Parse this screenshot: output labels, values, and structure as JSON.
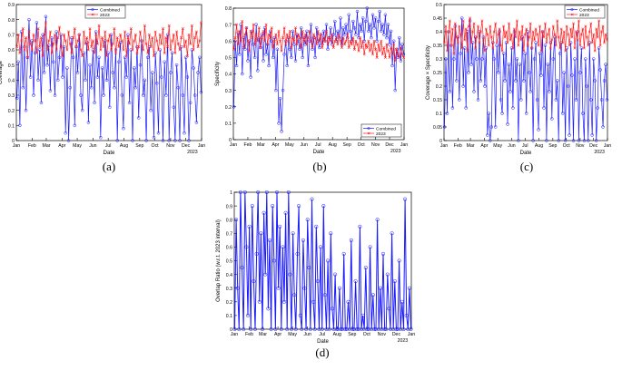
{
  "charts": [
    {
      "id": "a",
      "caption": "(a)",
      "ylabel": "Coverage",
      "xlabel": "Date",
      "ylim": [
        0,
        0.9
      ],
      "yticks": [
        "0",
        "0.1",
        "0.2",
        "0.3",
        "0.4",
        "0.5",
        "0.6",
        "0.7",
        "0.8",
        "0.9"
      ],
      "xticks": [
        "Jan",
        "Feb",
        "Mar",
        "Apr",
        "May",
        "Jun",
        "Jul",
        "Aug",
        "Sep",
        "Oct",
        "Nov",
        "Dec",
        "Jan"
      ],
      "year_label": "2023",
      "legend": [
        "Combined",
        "2023"
      ],
      "legend_position": "top-center"
    },
    {
      "id": "b",
      "caption": "(b)",
      "ylabel": "Specificity",
      "xlabel": "Date",
      "ylim": [
        0,
        0.8
      ],
      "yticks": [
        "0",
        "0.1",
        "0.2",
        "0.3",
        "0.4",
        "0.5",
        "0.6",
        "0.7",
        "0.8"
      ],
      "xticks": [
        "Jan",
        "Feb",
        "Mar",
        "Apr",
        "May",
        "Jun",
        "Jul",
        "Aug",
        "Sep",
        "Oct",
        "Nov",
        "Dec",
        "Jan"
      ],
      "year_label": "2023",
      "legend": [
        "Combined",
        "2023"
      ],
      "legend_position": "bottom-right"
    },
    {
      "id": "c",
      "caption": "(c)",
      "ylabel": "Coverage × Specificity",
      "xlabel": "Date",
      "ylim": [
        0,
        0.5
      ],
      "yticks": [
        "0",
        "0.05",
        "0.1",
        "0.15",
        "0.2",
        "0.25",
        "0.3",
        "0.35",
        "0.4",
        "0.45",
        "0.5"
      ],
      "xticks": [
        "Jan",
        "Feb",
        "Mar",
        "Apr",
        "May",
        "Jun",
        "Jul",
        "Aug",
        "Sep",
        "Oct",
        "Nov",
        "Dec",
        "Jan"
      ],
      "year_label": "2023",
      "legend": [
        "Combined",
        "2023"
      ],
      "legend_position": "top-right"
    },
    {
      "id": "d",
      "caption": "(d)",
      "ylabel": "Overlap Ratio (w.r.t. 2023 interval)",
      "xlabel": "Date",
      "ylim": [
        0,
        1
      ],
      "yticks": [
        "0",
        "0.1",
        "0.2",
        "0.3",
        "0.4",
        "0.5",
        "0.6",
        "0.7",
        "0.8",
        "0.9",
        "1"
      ],
      "xticks": [
        "Jan",
        "Feb",
        "Mar",
        "Apr",
        "May",
        "Jun",
        "Jul",
        "Aug",
        "Sep",
        "Oct",
        "Nov",
        "Dec",
        "Jan"
      ],
      "year_label": "2023",
      "legend": [],
      "legend_position": "none"
    }
  ],
  "colors": {
    "combined": "#1a1aff",
    "y2023": "#ff1a1a",
    "axis": "#000000",
    "text": "#000000"
  },
  "chart_data": [
    {
      "type": "line",
      "title": "",
      "xlabel": "Date",
      "ylabel": "Coverage",
      "ylim": [
        0,
        0.9
      ],
      "x_range": [
        "2023-01-01",
        "2024-01-01"
      ],
      "legend_position": "top-center",
      "series": [
        {
          "name": "Combined",
          "sample_every_days": 3,
          "values": [
            0.28,
            0.52,
            0.1,
            0.72,
            0.35,
            0.62,
            0.2,
            0.55,
            0.8,
            0.42,
            0.66,
            0.3,
            0.58,
            0.78,
            0.4,
            0.6,
            0.25,
            0.7,
            0.45,
            0.82,
            0.5,
            0.63,
            0.33,
            0.68,
            0.52,
            0.3,
            0.72,
            0.4,
            0.55,
            0.7,
            0.42,
            0.62,
            0.05,
            0.48,
            0.0,
            0.35,
            0.68,
            0.55,
            0.1,
            0.62,
            0.45,
            0.7,
            0.3,
            0.2,
            0.58,
            0.4,
            0.65,
            0.12,
            0.5,
            0.35,
            0.6,
            0.25,
            0.72,
            0.42,
            0.55,
            0.02,
            0.48,
            0.3,
            0.66,
            0.4,
            0.58,
            0.22,
            0.7,
            0.45,
            0.35,
            0.6,
            0.0,
            0.52,
            0.65,
            0.3,
            0.08,
            0.55,
            0.42,
            0.7,
            0.25,
            0.6,
            0.0,
            0.48,
            0.35,
            0.62,
            0.15,
            0.5,
            0.66,
            0.3,
            0.4,
            0.0,
            0.55,
            0.62,
            0.2,
            0.45,
            0.02,
            0.58,
            0.38,
            0.05,
            0.6,
            0.42,
            0.0,
            0.52,
            0.3,
            0.7,
            0.0,
            0.45,
            0.58,
            0.22,
            0.0,
            0.5,
            0.35,
            0.0,
            0.62,
            0.3,
            0.05,
            0.55,
            0.42,
            0.0,
            0.25,
            0.6,
            0.48,
            0.3,
            0.12,
            0.45,
            0.55,
            0.32
          ]
        },
        {
          "name": "2023",
          "sample_every_days": 3,
          "values": [
            0.62,
            0.7,
            0.58,
            0.66,
            0.74,
            0.6,
            0.68,
            0.55,
            0.72,
            0.64,
            0.6,
            0.7,
            0.66,
            0.58,
            0.74,
            0.62,
            0.68,
            0.56,
            0.7,
            0.78,
            0.6,
            0.66,
            0.72,
            0.58,
            0.64,
            0.7,
            0.6,
            0.68,
            0.75,
            0.62,
            0.56,
            0.7,
            0.66,
            0.6,
            0.72,
            0.64,
            0.58,
            0.68,
            0.74,
            0.62,
            0.66,
            0.7,
            0.6,
            0.56,
            0.72,
            0.64,
            0.68,
            0.6,
            0.74,
            0.62,
            0.66,
            0.58,
            0.7,
            0.64,
            0.76,
            0.6,
            0.68,
            0.62,
            0.72,
            0.56,
            0.66,
            0.7,
            0.6,
            0.64,
            0.74,
            0.58,
            0.68,
            0.62,
            0.7,
            0.66,
            0.6,
            0.72,
            0.56,
            0.68,
            0.64,
            0.74,
            0.6,
            0.66,
            0.7,
            0.58,
            0.62,
            0.72,
            0.66,
            0.6,
            0.76,
            0.64,
            0.58,
            0.7,
            0.62,
            0.68,
            0.56,
            0.72,
            0.66,
            0.6,
            0.7,
            0.64,
            0.74,
            0.58,
            0.68,
            0.62,
            0.76,
            0.6,
            0.66,
            0.7,
            0.58,
            0.72,
            0.64,
            0.6,
            0.68,
            0.74,
            0.62,
            0.66,
            0.56,
            0.7,
            0.64,
            0.76,
            0.6,
            0.68,
            0.72,
            0.62,
            0.66,
            0.78
          ]
        }
      ]
    },
    {
      "type": "line",
      "title": "",
      "xlabel": "Date",
      "ylabel": "Specificity",
      "ylim": [
        0,
        0.8
      ],
      "x_range": [
        "2023-01-01",
        "2024-01-01"
      ],
      "legend_position": "bottom-right",
      "series": [
        {
          "name": "Combined",
          "sample_every_days": 3,
          "values": [
            0.2,
            0.6,
            0.45,
            0.65,
            0.52,
            0.7,
            0.4,
            0.62,
            0.55,
            0.68,
            0.48,
            0.6,
            0.38,
            0.66,
            0.58,
            0.5,
            0.7,
            0.42,
            0.62,
            0.56,
            0.64,
            0.48,
            0.68,
            0.52,
            0.58,
            0.45,
            0.66,
            0.6,
            0.5,
            0.62,
            0.3,
            0.55,
            0.1,
            0.25,
            0.05,
            0.3,
            0.52,
            0.6,
            0.45,
            0.62,
            0.55,
            0.5,
            0.66,
            0.58,
            0.48,
            0.64,
            0.6,
            0.55,
            0.68,
            0.5,
            0.62,
            0.58,
            0.66,
            0.45,
            0.6,
            0.7,
            0.55,
            0.62,
            0.5,
            0.68,
            0.6,
            0.56,
            0.64,
            0.58,
            0.66,
            0.6,
            0.7,
            0.55,
            0.62,
            0.68,
            0.58,
            0.64,
            0.72,
            0.6,
            0.66,
            0.62,
            0.74,
            0.58,
            0.68,
            0.64,
            0.7,
            0.62,
            0.76,
            0.66,
            0.6,
            0.72,
            0.68,
            0.64,
            0.78,
            0.62,
            0.7,
            0.66,
            0.74,
            0.6,
            0.72,
            0.8,
            0.66,
            0.7,
            0.62,
            0.76,
            0.68,
            0.74,
            0.6,
            0.72,
            0.78,
            0.66,
            0.7,
            0.64,
            0.76,
            0.62,
            0.7,
            0.58,
            0.66,
            0.45,
            0.6,
            0.3,
            0.55,
            0.5,
            0.62,
            0.48,
            0.58,
            0.52
          ]
        },
        {
          "name": "2023",
          "sample_every_days": 3,
          "values": [
            0.55,
            0.62,
            0.7,
            0.58,
            0.66,
            0.6,
            0.72,
            0.56,
            0.64,
            0.68,
            0.6,
            0.54,
            0.66,
            0.62,
            0.7,
            0.58,
            0.64,
            0.6,
            0.68,
            0.56,
            0.62,
            0.66,
            0.6,
            0.7,
            0.58,
            0.64,
            0.62,
            0.68,
            0.56,
            0.6,
            0.64,
            0.58,
            0.66,
            0.6,
            0.54,
            0.62,
            0.68,
            0.58,
            0.64,
            0.6,
            0.66,
            0.56,
            0.62,
            0.6,
            0.68,
            0.58,
            0.64,
            0.62,
            0.56,
            0.66,
            0.6,
            0.64,
            0.58,
            0.62,
            0.66,
            0.6,
            0.56,
            0.64,
            0.62,
            0.58,
            0.66,
            0.6,
            0.64,
            0.56,
            0.62,
            0.6,
            0.66,
            0.58,
            0.62,
            0.6,
            0.64,
            0.56,
            0.6,
            0.62,
            0.58,
            0.64,
            0.6,
            0.56,
            0.62,
            0.58,
            0.6,
            0.64,
            0.56,
            0.6,
            0.58,
            0.62,
            0.55,
            0.6,
            0.58,
            0.54,
            0.62,
            0.56,
            0.6,
            0.52,
            0.58,
            0.56,
            0.6,
            0.54,
            0.58,
            0.52,
            0.6,
            0.55,
            0.5,
            0.58,
            0.54,
            0.6,
            0.52,
            0.56,
            0.5,
            0.58,
            0.54,
            0.5,
            0.56,
            0.52,
            0.58,
            0.48,
            0.55,
            0.52,
            0.5,
            0.56,
            0.52,
            0.5
          ]
        }
      ]
    },
    {
      "type": "line",
      "title": "",
      "xlabel": "Date",
      "ylabel": "Coverage × Specificity",
      "ylim": [
        0,
        0.5
      ],
      "x_range": [
        "2023-01-01",
        "2024-01-01"
      ],
      "legend_position": "top-right",
      "series": [
        {
          "name": "Combined",
          "sample_every_days": 3,
          "values": [
            0.05,
            0.3,
            0.1,
            0.4,
            0.18,
            0.35,
            0.12,
            0.3,
            0.42,
            0.22,
            0.38,
            0.15,
            0.32,
            0.45,
            0.2,
            0.34,
            0.12,
            0.4,
            0.25,
            0.44,
            0.28,
            0.36,
            0.18,
            0.38,
            0.3,
            0.15,
            0.4,
            0.22,
            0.3,
            0.38,
            0.2,
            0.34,
            0.02,
            0.1,
            0.0,
            0.05,
            0.36,
            0.3,
            0.05,
            0.35,
            0.25,
            0.4,
            0.15,
            0.1,
            0.32,
            0.22,
            0.36,
            0.06,
            0.28,
            0.18,
            0.34,
            0.12,
            0.4,
            0.22,
            0.3,
            0.0,
            0.28,
            0.15,
            0.38,
            0.22,
            0.32,
            0.1,
            0.4,
            0.25,
            0.18,
            0.34,
            0.0,
            0.3,
            0.36,
            0.15,
            0.04,
            0.32,
            0.24,
            0.4,
            0.12,
            0.35,
            0.0,
            0.28,
            0.18,
            0.36,
            0.08,
            0.3,
            0.38,
            0.15,
            0.22,
            0.0,
            0.32,
            0.36,
            0.1,
            0.25,
            0.0,
            0.34,
            0.2,
            0.02,
            0.36,
            0.24,
            0.0,
            0.3,
            0.15,
            0.4,
            0.0,
            0.25,
            0.34,
            0.1,
            0.0,
            0.3,
            0.2,
            0.0,
            0.36,
            0.15,
            0.02,
            0.3,
            0.22,
            0.0,
            0.12,
            0.34,
            0.26,
            0.15,
            0.05,
            0.22,
            0.28,
            0.15
          ]
        },
        {
          "name": "2023",
          "sample_every_days": 3,
          "values": [
            0.36,
            0.42,
            0.33,
            0.4,
            0.44,
            0.35,
            0.41,
            0.32,
            0.43,
            0.38,
            0.36,
            0.42,
            0.39,
            0.34,
            0.44,
            0.37,
            0.41,
            0.33,
            0.42,
            0.45,
            0.36,
            0.4,
            0.43,
            0.34,
            0.38,
            0.42,
            0.36,
            0.4,
            0.44,
            0.37,
            0.33,
            0.41,
            0.39,
            0.35,
            0.42,
            0.38,
            0.34,
            0.4,
            0.43,
            0.36,
            0.39,
            0.41,
            0.35,
            0.33,
            0.42,
            0.38,
            0.4,
            0.36,
            0.43,
            0.37,
            0.39,
            0.34,
            0.41,
            0.38,
            0.44,
            0.35,
            0.4,
            0.37,
            0.42,
            0.33,
            0.39,
            0.41,
            0.35,
            0.38,
            0.43,
            0.34,
            0.4,
            0.37,
            0.41,
            0.39,
            0.35,
            0.42,
            0.33,
            0.4,
            0.38,
            0.43,
            0.36,
            0.39,
            0.41,
            0.34,
            0.37,
            0.42,
            0.39,
            0.35,
            0.44,
            0.38,
            0.34,
            0.41,
            0.36,
            0.4,
            0.33,
            0.42,
            0.39,
            0.35,
            0.41,
            0.38,
            0.43,
            0.34,
            0.4,
            0.37,
            0.44,
            0.35,
            0.39,
            0.41,
            0.34,
            0.42,
            0.38,
            0.35,
            0.4,
            0.43,
            0.36,
            0.39,
            0.33,
            0.41,
            0.38,
            0.44,
            0.35,
            0.4,
            0.42,
            0.36,
            0.39,
            0.37
          ]
        }
      ]
    },
    {
      "type": "line",
      "title": "",
      "xlabel": "Date",
      "ylabel": "Overlap Ratio (w.r.t. 2023 interval)",
      "ylim": [
        0,
        1
      ],
      "x_range": [
        "2023-01-01",
        "2024-01-01"
      ],
      "legend_position": "none",
      "series": [
        {
          "name": "",
          "sample_every_days": 3,
          "values": [
            0.0,
            0.8,
            0.3,
            0.0,
            1.0,
            0.45,
            0.0,
            1.0,
            0.6,
            0.1,
            0.75,
            0.0,
            0.9,
            0.35,
            0.0,
            0.55,
            1.0,
            0.2,
            0.7,
            0.0,
            0.85,
            0.4,
            1.0,
            0.15,
            0.65,
            0.0,
            0.9,
            0.5,
            0.0,
            1.0,
            0.3,
            0.75,
            0.0,
            0.6,
            0.2,
            0.85,
            0.0,
            1.0,
            0.4,
            0.0,
            0.7,
            0.25,
            0.0,
            0.55,
            0.9,
            0.1,
            0.0,
            0.65,
            0.3,
            0.0,
            0.8,
            0.45,
            0.0,
            0.95,
            0.2,
            0.0,
            0.75,
            0.35,
            0.0,
            0.6,
            0.0,
            0.9,
            0.25,
            0.0,
            0.5,
            0.0,
            0.7,
            0.15,
            0.0,
            0.4,
            0.0,
            0.0,
            0.3,
            0.0,
            0.0,
            0.55,
            0.0,
            0.0,
            0.2,
            0.0,
            0.65,
            0.0,
            0.0,
            0.35,
            0.0,
            0.0,
            0.75,
            0.0,
            0.1,
            0.0,
            0.45,
            0.0,
            0.0,
            0.6,
            0.0,
            0.25,
            0.0,
            0.0,
            0.8,
            0.0,
            0.3,
            0.0,
            0.55,
            0.0,
            0.0,
            0.4,
            0.15,
            0.0,
            0.7,
            0.0,
            0.35,
            0.0,
            0.0,
            0.5,
            0.0,
            0.2,
            0.0,
            0.95,
            0.1,
            0.0,
            0.3,
            0.0
          ]
        }
      ]
    }
  ]
}
